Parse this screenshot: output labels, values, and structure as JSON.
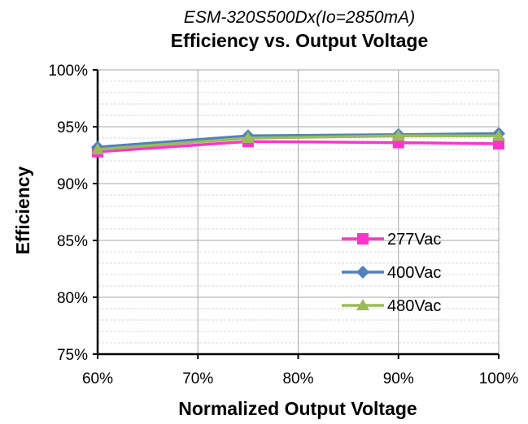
{
  "chart_data": {
    "type": "line",
    "subtitle": "ESM-320S500Dx(Io=2850mA)",
    "title": "Efficiency vs. Output Voltage",
    "xlabel": "Normalized Output Voltage",
    "ylabel": "Efficiency",
    "x": [
      75,
      100
    ],
    "x_ticks": [
      60,
      70,
      80,
      90,
      100
    ],
    "x_tick_labels": [
      "60%",
      "70%",
      "80%",
      "90%",
      "100%"
    ],
    "xlim": [
      60,
      100
    ],
    "y_ticks": [
      75,
      80,
      85,
      90,
      95,
      100
    ],
    "y_tick_labels": [
      "75%",
      "80%",
      "85%",
      "90%",
      "95%",
      "100%"
    ],
    "ylim": [
      75,
      100
    ],
    "grid": true,
    "legend_position": "right",
    "series": [
      {
        "name": "277Vac",
        "color": "#ff33cc",
        "marker": "square",
        "points": [
          [
            60,
            92.8
          ],
          [
            75,
            93.7
          ],
          [
            90,
            93.6
          ],
          [
            100,
            93.5
          ]
        ]
      },
      {
        "name": "400Vac",
        "color": "#4f81bd",
        "marker": "diamond",
        "points": [
          [
            60,
            93.2
          ],
          [
            75,
            94.2
          ],
          [
            90,
            94.3
          ],
          [
            100,
            94.4
          ]
        ]
      },
      {
        "name": "480Vac",
        "color": "#9bbb59",
        "marker": "triangle",
        "points": [
          [
            60,
            93.0
          ],
          [
            75,
            94.0
          ],
          [
            90,
            94.2
          ],
          [
            100,
            94.2
          ]
        ]
      }
    ]
  }
}
